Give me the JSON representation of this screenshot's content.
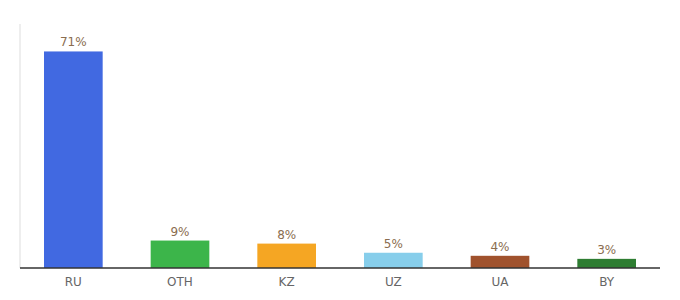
{
  "chart_data": {
    "type": "bar",
    "categories": [
      "RU",
      "OTH",
      "KZ",
      "UZ",
      "UA",
      "BY"
    ],
    "values": [
      71,
      9,
      8,
      5,
      4,
      3
    ],
    "value_labels": [
      "71%",
      "9%",
      "8%",
      "5%",
      "4%",
      "3%"
    ],
    "colors": [
      "#4169e1",
      "#3cb54a",
      "#f5a623",
      "#87ceeb",
      "#a0522d",
      "#2e7d32"
    ],
    "ylim": [
      0,
      80
    ],
    "data_labels": true,
    "tick_labels": "x",
    "grid": false
  }
}
